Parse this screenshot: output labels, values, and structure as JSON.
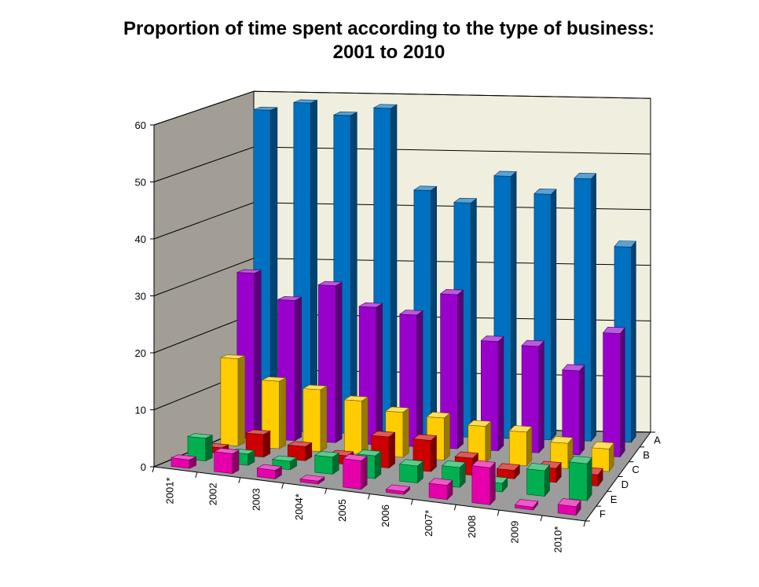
{
  "chart_data": {
    "type": "bar",
    "title": "Proportion of time spent according to the type of business:",
    "subtitle": "2001 to 2010",
    "categories": [
      "2001*",
      "2002",
      "2003",
      "2004*",
      "2005",
      "2006",
      "2007*",
      "2008",
      "2009",
      "2010*"
    ],
    "ylim": [
      0,
      60
    ],
    "yticks": [
      "0",
      "10",
      "20",
      "30",
      "40",
      "50",
      "60"
    ],
    "grid": true,
    "series": [
      {
        "name": "A",
        "color": "#0070C0",
        "values": [
          57.5,
          59,
          57,
          58.5,
          44,
          42,
          47,
          44,
          47,
          35
        ]
      },
      {
        "name": "B",
        "color": "#9900CC",
        "values": [
          29.5,
          25,
          28,
          24.5,
          23.5,
          27.5,
          19.5,
          19,
          15,
          22
        ]
      },
      {
        "name": "C",
        "color": "#FFCC00",
        "values": [
          15.5,
          12,
          11,
          9.5,
          8,
          7.5,
          6.5,
          6,
          4.5,
          4
        ]
      },
      {
        "name": "D",
        "color": "#CC0000",
        "values": [
          1,
          4,
          2.5,
          1.5,
          5.5,
          5.5,
          3,
          1.5,
          2.5,
          2
        ]
      },
      {
        "name": "E",
        "color": "#00B050",
        "values": [
          4,
          2,
          1.5,
          3,
          4,
          3,
          3.5,
          1.5,
          4.5,
          6.5
        ]
      },
      {
        "name": "F",
        "color": "#E600AC",
        "values": [
          1.5,
          3.5,
          1.5,
          0.5,
          5,
          0.5,
          2.5,
          6.5,
          0.5,
          1.5
        ]
      }
    ]
  }
}
